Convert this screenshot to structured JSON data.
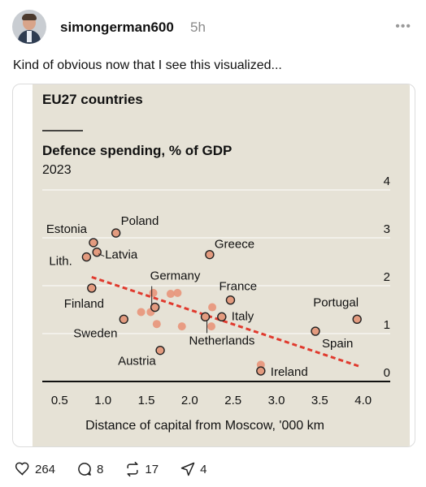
{
  "post": {
    "username": "simongerman600",
    "time": "5h",
    "more": "•••",
    "text": "Kind of obvious now that I see this visualized..."
  },
  "actions": {
    "likes": "264",
    "comments": "8",
    "reposts": "17",
    "shares": "4",
    "icons": [
      "heart-icon",
      "comment-icon",
      "repost-icon",
      "share-icon"
    ]
  },
  "chart_data": {
    "type": "scatter",
    "supertitle": "EU27 countries",
    "title": "Defence spending, % of GDP",
    "subtitle": "2023",
    "xlabel": "Distance of capital from Moscow, '000 km",
    "ylabel": "",
    "xlim": [
      0.5,
      4.0
    ],
    "ylim": [
      0,
      4
    ],
    "xticks": [
      "0.5",
      "1.0",
      "1.5",
      "2.0",
      "2.5",
      "3.0",
      "3.5",
      "4.0"
    ],
    "yticks": [
      "0",
      "1",
      "2",
      "3",
      "4"
    ],
    "grid": true,
    "colors": {
      "background": "#e6e2d6",
      "labelled_point_fill": "#e39b7f",
      "other_point_fill": "#e8957a",
      "trend": "#e03a2e",
      "grid": "#ffffff"
    },
    "labelled_points": [
      {
        "label": "Estonia",
        "x": 0.89,
        "y": 2.9
      },
      {
        "label": "Poland",
        "x": 1.15,
        "y": 3.1
      },
      {
        "label": "Latvia",
        "x": 0.93,
        "y": 2.7
      },
      {
        "label": "Lith.",
        "x": 0.81,
        "y": 2.6
      },
      {
        "label": "Finland",
        "x": 0.87,
        "y": 1.95
      },
      {
        "label": "Sweden",
        "x": 1.24,
        "y": 1.3
      },
      {
        "label": "Germany",
        "x": 1.6,
        "y": 1.55
      },
      {
        "label": "Greece",
        "x": 2.23,
        "y": 2.65
      },
      {
        "label": "France",
        "x": 2.47,
        "y": 1.7
      },
      {
        "label": "Italy",
        "x": 2.37,
        "y": 1.35
      },
      {
        "label": "Netherlands",
        "x": 2.18,
        "y": 1.35
      },
      {
        "label": "Austria",
        "x": 1.66,
        "y": 0.65
      },
      {
        "label": "Portugal",
        "x": 3.93,
        "y": 1.3
      },
      {
        "label": "Spain",
        "x": 3.45,
        "y": 1.05
      },
      {
        "label": "Ireland",
        "x": 2.82,
        "y": 0.22
      }
    ],
    "other_points": [
      {
        "x": 1.58,
        "y": 1.85
      },
      {
        "x": 1.78,
        "y": 1.83
      },
      {
        "x": 1.86,
        "y": 1.85
      },
      {
        "x": 1.44,
        "y": 1.45
      },
      {
        "x": 1.55,
        "y": 1.45
      },
      {
        "x": 1.62,
        "y": 1.2
      },
      {
        "x": 1.91,
        "y": 1.15
      },
      {
        "x": 2.26,
        "y": 1.55
      },
      {
        "x": 2.25,
        "y": 1.15
      },
      {
        "x": 2.82,
        "y": 0.35
      }
    ],
    "trend_line": {
      "x": [
        0.87,
        3.95
      ],
      "y": [
        2.18,
        0.32
      ]
    }
  }
}
